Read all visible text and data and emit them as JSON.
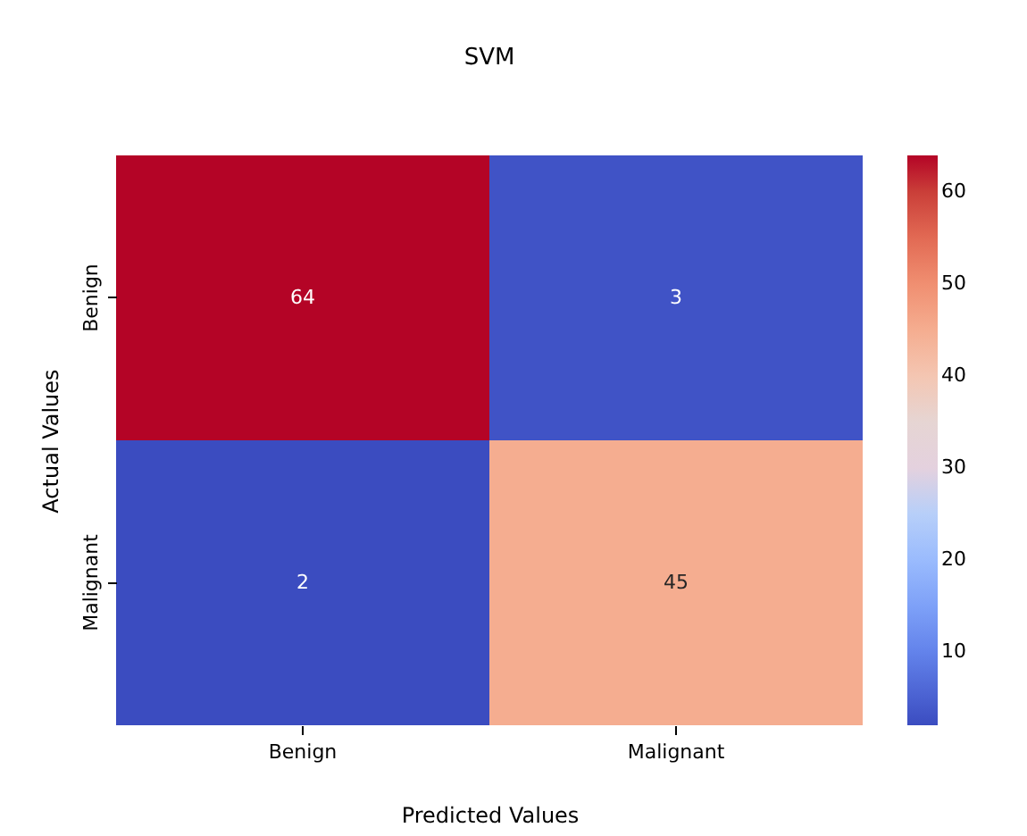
{
  "chart_data": {
    "type": "heatmap",
    "title": "SVM",
    "xlabel": "Predicted Values",
    "ylabel": "Actual Values",
    "categories": [
      "Benign",
      "Malignant"
    ],
    "y_categories": [
      "Benign",
      "Malignant"
    ],
    "cells": [
      [
        64,
        3
      ],
      [
        2,
        45
      ]
    ],
    "clim": [
      2,
      64
    ],
    "cticks": [
      10,
      20,
      30,
      40,
      50,
      60
    ],
    "data_labels": true
  }
}
